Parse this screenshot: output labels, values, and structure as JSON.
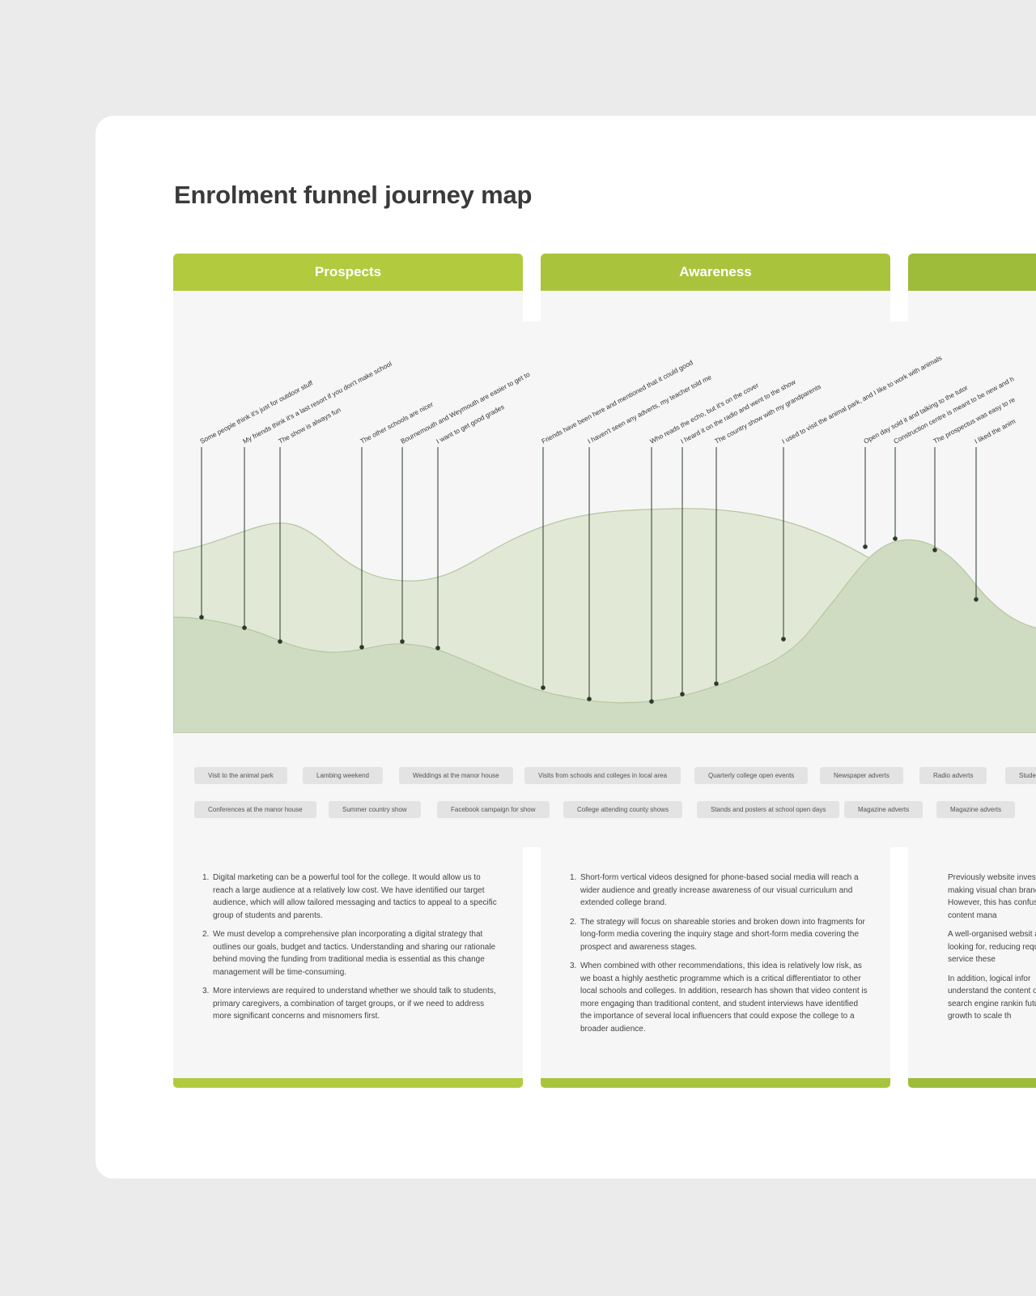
{
  "title": "Enrolment funnel journey map",
  "stages": [
    {
      "name": "Prospects",
      "color": "#b2cb3e",
      "insights": [
        "Digital marketing can be a powerful tool for the college. It would allow us to reach a large audience at a relatively low cost. We have identified our target audience, which will allow tailored messaging and tactics to appeal to a specific group of students and parents.",
        "We must develop a comprehensive plan incorporating a digital strategy that outlines our goals, budget and tactics. Understanding and sharing our rationale behind moving the funding from traditional media is essential as this change management will be time-consuming.",
        "More interviews are required to understand whether we should talk to students, primary caregivers, a combination of target groups, or if we need to address more significant concerns and misnomers first."
      ]
    },
    {
      "name": "Awareness",
      "color": "#a9c43c",
      "insights": [
        "Short-form vertical videos designed for phone-based social media will reach a wider audience and greatly increase awareness of our visual curriculum and extended college brand.",
        "The strategy will focus on shareable stories and broken down into fragments for long-form media covering the inquiry stage and short-form media covering the prospect and awareness stages.",
        " When combined with other recommendations, this idea is relatively low risk, as we boast a highly aesthetic programme which is a critical differentiator to other local schools and colleges. In addition, research has shown that video content is more engaging than traditional content, and student interviews have identified the importance of several local influencers that could expose the college to a broader audience."
      ]
    },
    {
      "name": "",
      "color": "#9ebc3a",
      "insights": [
        "Previously website inves and making visual chan brand. However, this has confusing content mana",
        "A well-organised websit are looking for, reducing required to service these",
        "In addition, logical infor understand the content our search engine rankin future growth to scale th"
      ]
    }
  ],
  "quotes": [
    "Some people think it's just for outdoor stuff",
    "My friends think it's a last resort if you don't make school",
    "The show is always fun",
    "The other schools are nicer",
    "Bournemouth and Weymouth are easier to get to",
    "I want to get good grades",
    "Friends have been here and mentioned that it could good",
    "I haven't seen any adverts, my teacher told me",
    "Who reads the echo, but it's on the cover",
    "I heard it on the radio and went to the show",
    "The country show with my grandparents",
    "I used to visit the animal park, and I like to work with animals",
    "Open day sold it and talking to the tutor",
    "Construction centre is meant to be new and h",
    "The prospectus was easy to re",
    "I liked the anim"
  ],
  "touchpoints_row1": [
    "Visit to the animal park",
    "Lambing weekend",
    "Weddings at the manor house",
    "Visits from schools and colleges in local area",
    "Quarterly college open events",
    "Newspaper adverts",
    "Radio adverts",
    "Stude"
  ],
  "touchpoints_row2": [
    "Conferences at the manor house",
    "Summer country show",
    "Facebook campaign for show",
    "College attending county shows",
    "Stands and posters at school open days",
    "Magazine adverts",
    "Magazine adverts"
  ],
  "colors": {
    "back_curve_fill": "#e1e8d6",
    "front_curve_fill": "#cfdcc2",
    "curve_stroke": "#b6c6a2",
    "marker": "#2b3a2b"
  }
}
